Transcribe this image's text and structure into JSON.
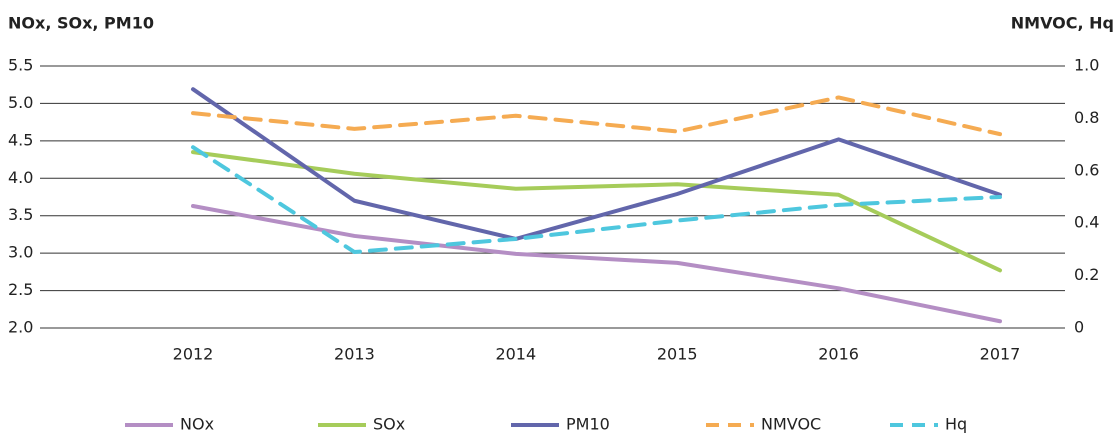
{
  "chart_data": {
    "type": "line",
    "ylabel": "NOx, SOx, PM10",
    "y2label": "NMVOC, Hq",
    "categories": [
      "2012",
      "2013",
      "2014",
      "2015",
      "2016",
      "2017"
    ],
    "ylim": [
      2.0,
      5.5
    ],
    "yticks": [
      {
        "value": 2.0,
        "label": "2.0"
      },
      2.5,
      {
        "value": 3.0,
        "label": "3.0"
      },
      3.5,
      {
        "value": 4.0,
        "label": "4.0"
      },
      4.5,
      {
        "value": 5.0,
        "label": "5.0"
      },
      5.5
    ],
    "y2lim": [
      0,
      1
    ],
    "y2ticks": [
      0,
      0.2,
      0.4,
      0.6,
      0.8,
      {
        "value": 1,
        "label": "1.0"
      }
    ],
    "grid": true,
    "legend": "bottom",
    "series": [
      {
        "name": "NOx",
        "color": "#b48ec4",
        "values": [
          3.63,
          3.23,
          2.99,
          2.87,
          2.53,
          2.09
        ]
      },
      {
        "name": "SOx",
        "color": "#a6cc5a",
        "values": [
          4.35,
          4.06,
          3.86,
          3.92,
          3.78,
          2.77
        ]
      },
      {
        "name": "PM10",
        "color": "#6266ab",
        "values": [
          5.19,
          3.7,
          3.19,
          3.79,
          4.52,
          3.78
        ]
      },
      {
        "name": "NMVOC",
        "color": "#f5ab52",
        "dashed": true,
        "axis": "y2",
        "values": [
          0.82,
          0.76,
          0.81,
          0.75,
          0.88,
          0.74
        ]
      },
      {
        "name": "Hq",
        "color": "#4ec7de",
        "dashed": true,
        "axis": "y2",
        "values": [
          0.69,
          0.29,
          0.34,
          0.41,
          0.47,
          0.5
        ]
      }
    ]
  }
}
